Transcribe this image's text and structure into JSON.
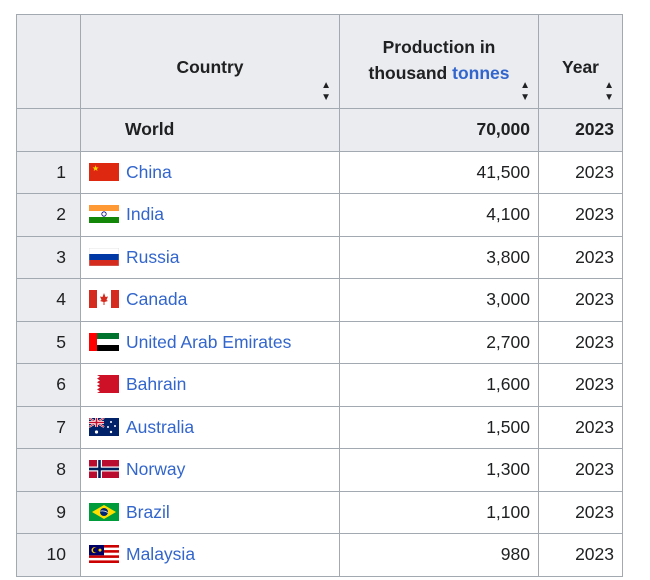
{
  "table": {
    "headers": {
      "country": "Country",
      "production_prefix": "Production in",
      "production_line2": "thousand",
      "production_link": "tonnes",
      "year": "Year"
    },
    "world": {
      "label": "World",
      "production": "70,000",
      "year": "2023"
    },
    "rows": [
      {
        "rank": "1",
        "country": "China",
        "flag": "china-flag",
        "production": "41,500",
        "year": "2023"
      },
      {
        "rank": "2",
        "country": "India",
        "flag": "india-flag",
        "production": "4,100",
        "year": "2023"
      },
      {
        "rank": "3",
        "country": "Russia",
        "flag": "russia-flag",
        "production": "3,800",
        "year": "2023"
      },
      {
        "rank": "4",
        "country": "Canada",
        "flag": "canada-flag",
        "production": "3,000",
        "year": "2023"
      },
      {
        "rank": "5",
        "country": "United Arab Emirates",
        "flag": "uae-flag",
        "production": "2,700",
        "year": "2023"
      },
      {
        "rank": "6",
        "country": "Bahrain",
        "flag": "bahrain-flag",
        "production": "1,600",
        "year": "2023"
      },
      {
        "rank": "7",
        "country": "Australia",
        "flag": "australia-flag",
        "production": "1,500",
        "year": "2023"
      },
      {
        "rank": "8",
        "country": "Norway",
        "flag": "norway-flag",
        "production": "1,300",
        "year": "2023"
      },
      {
        "rank": "9",
        "country": "Brazil",
        "flag": "brazil-flag",
        "production": "1,100",
        "year": "2023"
      },
      {
        "rank": "10",
        "country": "Malaysia",
        "flag": "malaysia-flag",
        "production": "980",
        "year": "2023"
      }
    ]
  },
  "colors": {
    "link": "#3366cc",
    "header_bg": "#eaecf0",
    "border": "#a2a9b1"
  }
}
